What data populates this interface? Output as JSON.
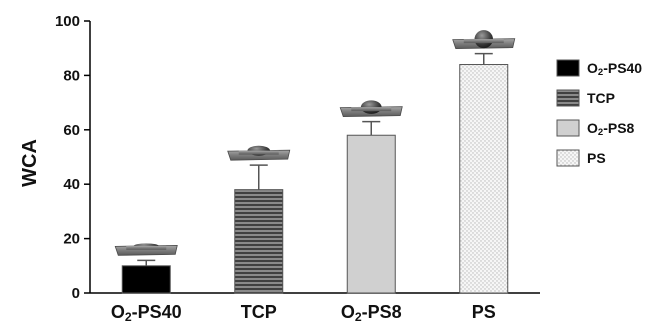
{
  "chart_data": {
    "type": "bar",
    "ylabel": "WCA",
    "ylim": [
      0,
      100
    ],
    "yticks": [
      0,
      20,
      40,
      60,
      80,
      100
    ],
    "grid": false,
    "legend_position": "right",
    "series": [
      {
        "name_main": "O",
        "name_sub": "2",
        "name_rest": "-PS40",
        "value": 10,
        "error": 2,
        "pattern": "solid",
        "color": "#000000"
      },
      {
        "name_main": "TCP",
        "name_sub": "",
        "name_rest": "",
        "value": 38,
        "error": 9,
        "pattern": "horizontal-stripes",
        "color": "#666666"
      },
      {
        "name_main": "O",
        "name_sub": "2",
        "name_rest": "-PS8",
        "value": 58,
        "error": 5,
        "pattern": "light-gray",
        "color": "#d0d0d0"
      },
      {
        "name_main": "PS",
        "name_sub": "",
        "name_rest": "",
        "value": 84,
        "error": 4,
        "pattern": "dots",
        "color": "#f2f2f2"
      }
    ],
    "annotations": "water droplet on slab above each bar"
  }
}
